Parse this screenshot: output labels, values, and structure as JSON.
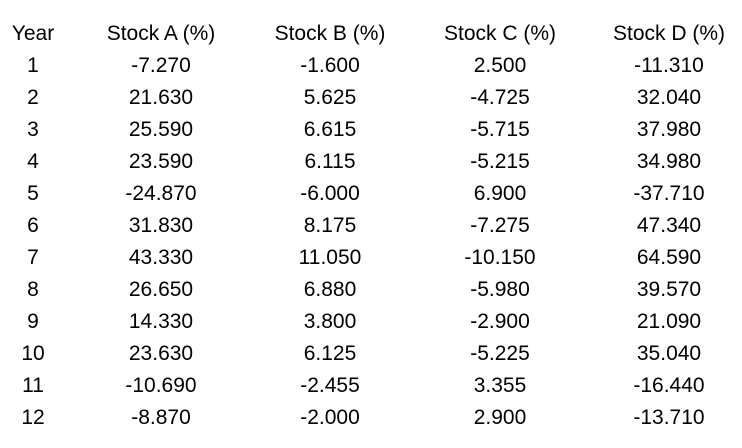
{
  "chart_data": {
    "type": "table",
    "columns": [
      "Year",
      "Stock A (%)",
      "Stock B (%)",
      "Stock C (%)",
      "Stock D (%)"
    ],
    "rows": [
      [
        "1",
        "-7.270",
        "-1.600",
        "2.500",
        "-11.310"
      ],
      [
        "2",
        "21.630",
        "5.625",
        "-4.725",
        "32.040"
      ],
      [
        "3",
        "25.590",
        "6.615",
        "-5.715",
        "37.980"
      ],
      [
        "4",
        "23.590",
        "6.115",
        "-5.215",
        "34.980"
      ],
      [
        "5",
        "-24.870",
        "-6.000",
        "6.900",
        "-37.710"
      ],
      [
        "6",
        "31.830",
        "8.175",
        "-7.275",
        "47.340"
      ],
      [
        "7",
        "43.330",
        "11.050",
        "-10.150",
        "64.590"
      ],
      [
        "8",
        "26.650",
        "6.880",
        "-5.980",
        "39.570"
      ],
      [
        "9",
        "14.330",
        "3.800",
        "-2.900",
        "21.090"
      ],
      [
        "10",
        "23.630",
        "6.125",
        "-5.225",
        "35.040"
      ],
      [
        "11",
        "-10.690",
        "-2.455",
        "3.355",
        "-16.440"
      ],
      [
        "12",
        "-8.870",
        "-2.000",
        "2.900",
        "-13.710"
      ]
    ]
  }
}
